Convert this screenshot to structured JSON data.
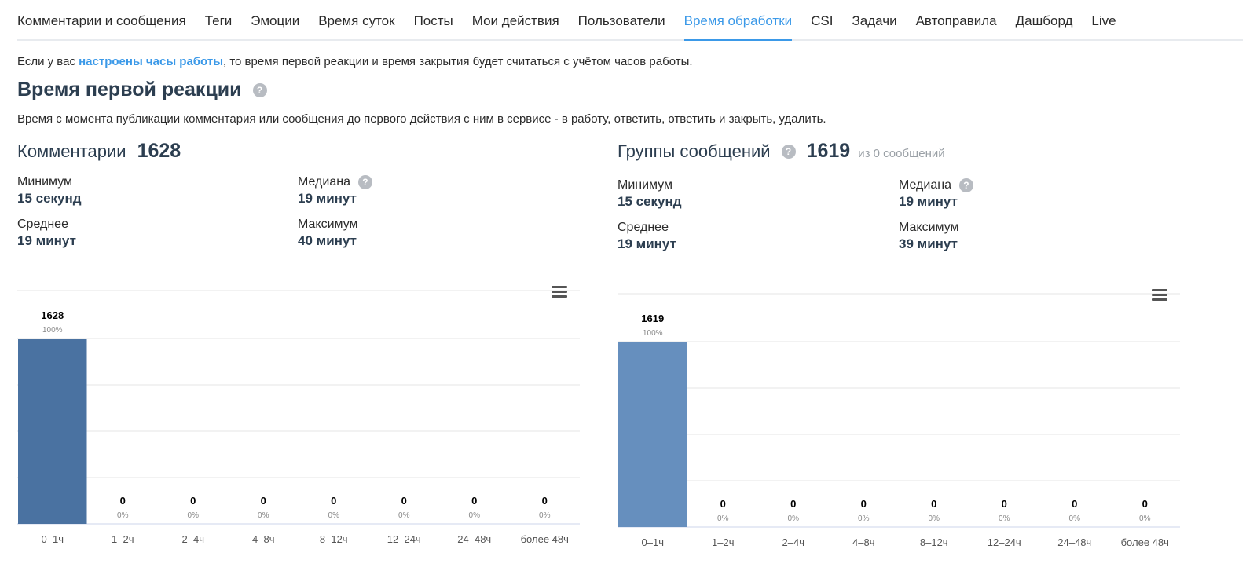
{
  "tabs": [
    {
      "label": "Комментарии и сообщения",
      "active": false
    },
    {
      "label": "Теги",
      "active": false
    },
    {
      "label": "Эмоции",
      "active": false
    },
    {
      "label": "Время суток",
      "active": false
    },
    {
      "label": "Посты",
      "active": false
    },
    {
      "label": "Мои действия",
      "active": false
    },
    {
      "label": "Пользователи",
      "active": false
    },
    {
      "label": "Время обработки",
      "active": true
    },
    {
      "label": "CSI",
      "active": false
    },
    {
      "label": "Задачи",
      "active": false
    },
    {
      "label": "Автоправила",
      "active": false
    },
    {
      "label": "Дашборд",
      "active": false
    },
    {
      "label": "Live",
      "active": false
    }
  ],
  "info": {
    "prefix": "Если у вас ",
    "link": "настроены часы работы",
    "suffix": ", то время первой реакции и время закрытия будет считаться с учётом часов работы."
  },
  "section": {
    "title": "Время первой реакции",
    "help": "?",
    "description": "Время с момента публикации комментария или сообщения до первого действия с ним в сервисе - в работу, ответить, ответить и закрыть, удалить."
  },
  "panels": [
    {
      "title": "Комментарии",
      "count": "1628",
      "sub": "",
      "has_help": false,
      "stats": {
        "min_label": "Минимум",
        "min_value": "15 секунд",
        "median_label": "Медиана",
        "median_value": "19 минут",
        "avg_label": "Среднее",
        "avg_value": "19 минут",
        "max_label": "Максимум",
        "max_value": "40 минут"
      }
    },
    {
      "title": "Группы сообщений",
      "count": "1619",
      "sub": "из 0 сообщений",
      "has_help": true,
      "stats": {
        "min_label": "Минимум",
        "min_value": "15 секунд",
        "median_label": "Медиана",
        "median_value": "19 минут",
        "avg_label": "Среднее",
        "avg_value": "19 минут",
        "max_label": "Максимум",
        "max_value": "39 минут"
      }
    }
  ],
  "chart_data": [
    {
      "type": "bar",
      "categories": [
        "0–1ч",
        "1–2ч",
        "2–4ч",
        "4–8ч",
        "8–12ч",
        "12–24ч",
        "24–48ч",
        "более 48ч"
      ],
      "values": [
        1628,
        0,
        0,
        0,
        0,
        0,
        0,
        0
      ],
      "percent_labels": [
        "100%",
        "0%",
        "0%",
        "0%",
        "0%",
        "0%",
        "0%",
        "0%"
      ],
      "grid": true,
      "color": "#4a72a1"
    },
    {
      "type": "bar",
      "categories": [
        "0–1ч",
        "1–2ч",
        "2–4ч",
        "4–8ч",
        "8–12ч",
        "12–24ч",
        "24–48ч",
        "более 48ч"
      ],
      "values": [
        1619,
        0,
        0,
        0,
        0,
        0,
        0,
        0
      ],
      "percent_labels": [
        "100%",
        "0%",
        "0%",
        "0%",
        "0%",
        "0%",
        "0%",
        "0%"
      ],
      "grid": true,
      "color": "#668fbe"
    }
  ]
}
